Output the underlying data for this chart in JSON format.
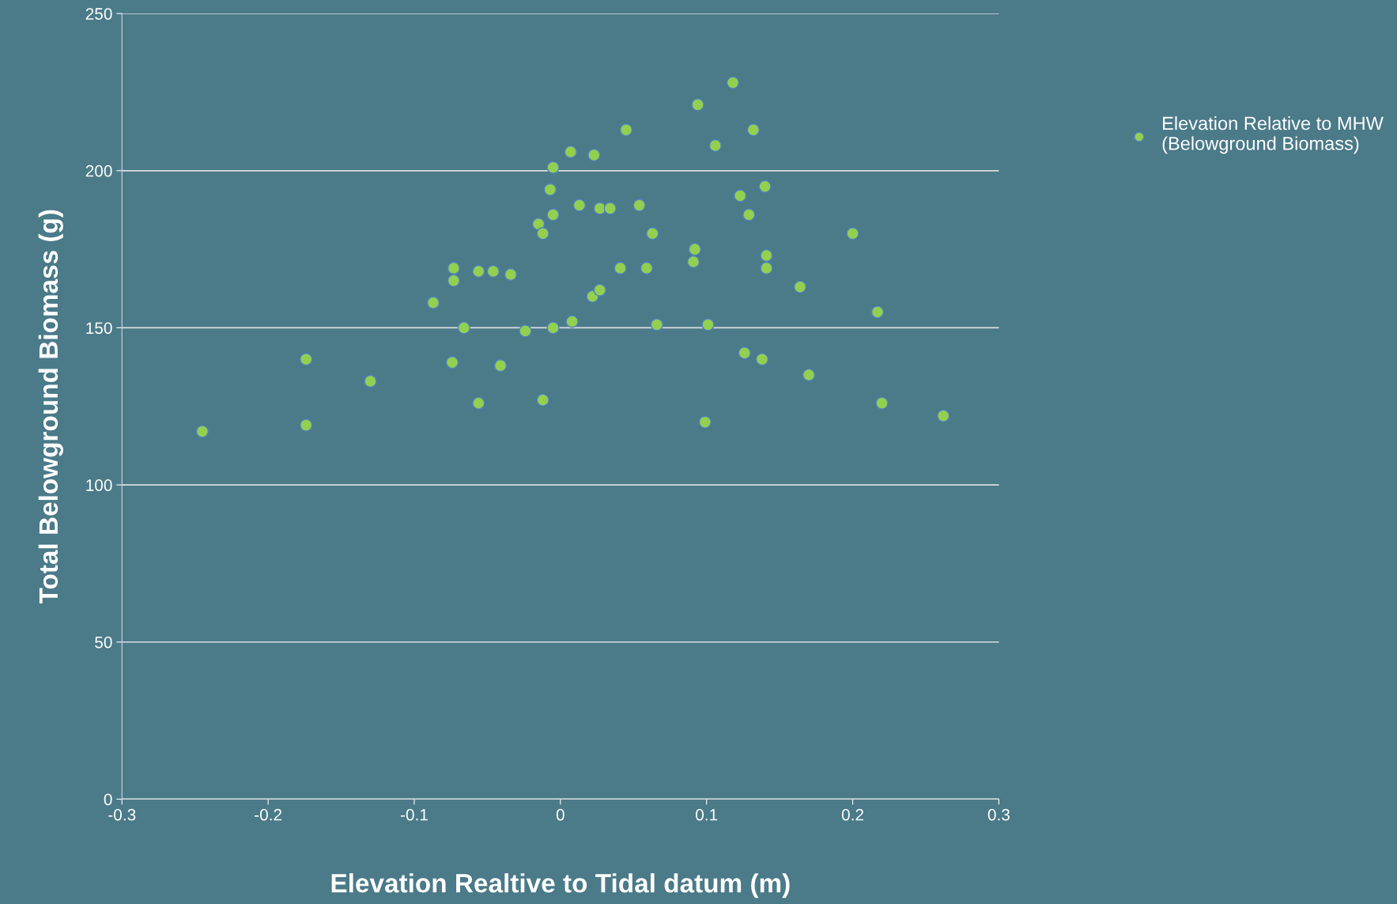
{
  "chart_data": {
    "type": "scatter",
    "xlabel": "Elevation Realtive to Tidal datum (m)",
    "ylabel": "Total Belowground Biomass (g)",
    "series": [
      {
        "name": "Elevation Relative to MHW\n(Belowground Biomass)",
        "color": "#92d050",
        "x": [
          -0.245,
          -0.174,
          -0.174,
          -0.13,
          -0.087,
          -0.073,
          -0.073,
          -0.074,
          -0.066,
          -0.056,
          -0.056,
          -0.046,
          -0.041,
          -0.034,
          -0.024,
          -0.015,
          -0.012,
          -0.012,
          -0.007,
          -0.005,
          -0.005,
          -0.005,
          0.007,
          0.008,
          0.013,
          0.023,
          0.022,
          0.027,
          0.027,
          0.034,
          0.041,
          0.045,
          0.054,
          0.059,
          0.063,
          0.066,
          0.091,
          0.092,
          0.094,
          0.099,
          0.101,
          0.106,
          0.118,
          0.123,
          0.126,
          0.129,
          0.132,
          0.138,
          0.14,
          0.141,
          0.141,
          0.164,
          0.17,
          0.2,
          0.217,
          0.22,
          0.262
        ],
        "values": [
          117,
          140,
          119,
          133,
          158,
          169,
          165,
          139,
          150,
          168,
          126,
          168,
          138,
          167,
          149,
          183,
          180,
          127,
          194,
          201,
          186,
          150,
          206,
          152,
          189,
          205,
          160,
          162,
          188,
          188,
          169,
          213,
          189,
          169,
          180,
          151,
          171,
          175,
          221,
          120,
          151,
          208,
          228,
          192,
          142,
          186,
          213,
          140,
          195,
          173,
          169,
          163,
          135,
          180,
          155,
          126,
          122
        ]
      }
    ],
    "xlim": [
      -0.3,
      0.3
    ],
    "xticks": [
      -0.3,
      -0.2,
      -0.1,
      0,
      0.1,
      0.2,
      0.3
    ],
    "ylim": [
      0,
      250
    ],
    "yticks": [
      0,
      50,
      100,
      150,
      200,
      250
    ],
    "grid": "y",
    "legend": "top right",
    "marker": "circle"
  }
}
